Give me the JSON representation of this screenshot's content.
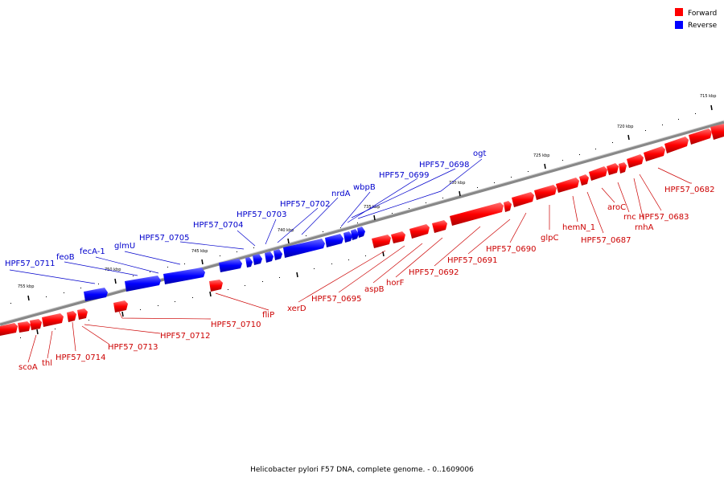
{
  "caption": "Helicobacter pylori F57 DNA, complete genome. - 0..1609006",
  "legend": [
    {
      "label": "Forward",
      "color": "#ff0000"
    },
    {
      "label": "Reverse",
      "color": "#0000ff"
    }
  ],
  "scale_labels": [
    "715 kbp",
    "720 kbp",
    "725 kbp",
    "730 kbp",
    "735 kbp",
    "740 kbp",
    "745 kbp",
    "750 kbp",
    "755 kbp"
  ],
  "forward_genes": [
    "HPF57_0682",
    "HPF57_0683",
    "rnhA",
    "rnc",
    "aroC",
    "HPF57_0687",
    "hemN_1",
    "glpC",
    "HPF57_0690",
    "HPF57_0691",
    "HPF57_0692",
    "horF",
    "aspB",
    "HPF57_0695",
    "xerD",
    "fliP",
    "HPF57_0710",
    "HPF57_0712",
    "HPF57_0713",
    "HPF57_0714",
    "thl",
    "scoA"
  ],
  "reverse_genes": [
    "ogt",
    "HPF57_0698",
    "HPF57_0699",
    "wbpB",
    "nrdA",
    "HPF57_0702",
    "HPF57_0703",
    "HPF57_0704",
    "HPF57_0705",
    "glmU",
    "fecA-1",
    "feoB",
    "HPF57_0711"
  ],
  "colors": {
    "forward": "#ff0000",
    "reverse": "#0000ff",
    "forward_label": "#cc0000",
    "reverse_label": "#0000cc"
  }
}
